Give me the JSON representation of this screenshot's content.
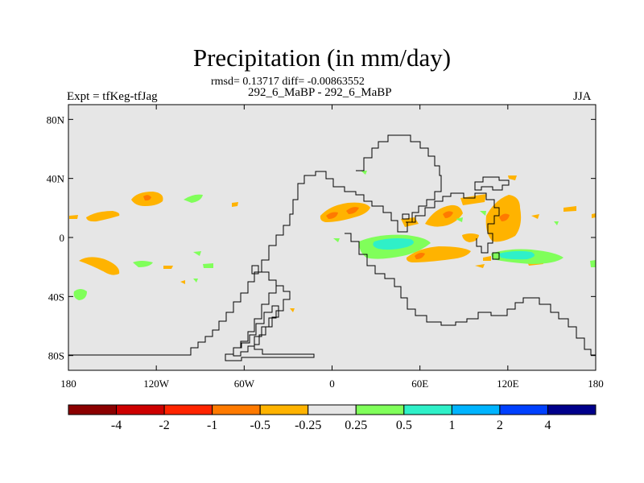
{
  "title": "Precipitation (in mm/day)",
  "stats_line": "rmsd= 0.13717 diff= -0.00863552",
  "subtitle": "292_6_MaBP - 292_6_MaBP",
  "left_label": "Expt = tfKeg-tfJag",
  "right_label": "JJA",
  "map": {
    "projection": "cylindrical-equidistant",
    "lon_range": [
      -180,
      180
    ],
    "lat_range": [
      -90,
      90
    ],
    "background_color": "#e6e6e6",
    "coastline_color": "#000000",
    "x_ticks": [
      {
        "value": -180,
        "label": "180"
      },
      {
        "value": -120,
        "label": "120W"
      },
      {
        "value": -60,
        "label": "60W"
      },
      {
        "value": 0,
        "label": "0"
      },
      {
        "value": 60,
        "label": "60E"
      },
      {
        "value": 120,
        "label": "120E"
      },
      {
        "value": 180,
        "label": "180"
      }
    ],
    "y_ticks": [
      {
        "value": 80,
        "label": "80N"
      },
      {
        "value": 40,
        "label": "40N"
      },
      {
        "value": 0,
        "label": "0"
      },
      {
        "value": -40,
        "label": "40S"
      },
      {
        "value": -80,
        "label": "80S"
      }
    ]
  },
  "colorbar": {
    "colors": [
      "#8b0000",
      "#cd0000",
      "#ff2400",
      "#ff7a00",
      "#ffb300",
      "#e6e6e6",
      "#80ff5a",
      "#2ff0c8",
      "#00b4ff",
      "#0040ff",
      "#00008b"
    ],
    "labels": [
      "-4",
      "-2",
      "-1",
      "-0.5",
      "-0.25",
      "0.25",
      "0.5",
      "1",
      "2",
      "4"
    ]
  }
}
